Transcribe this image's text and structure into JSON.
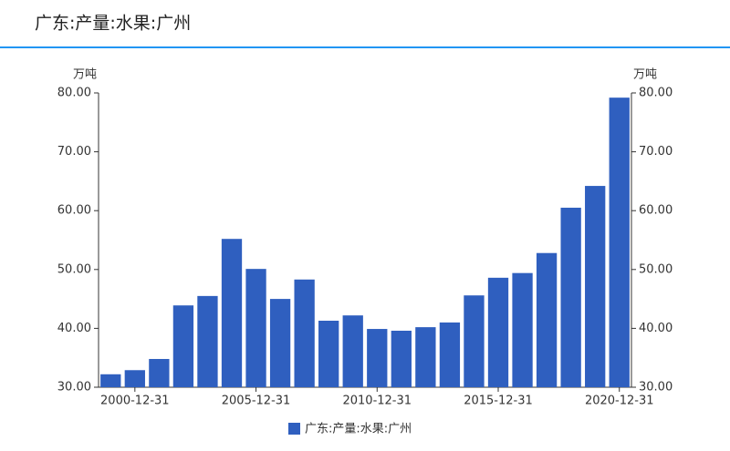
{
  "chart_data": {
    "type": "bar",
    "title": "广东:产量:水果:广州",
    "y_unit": "万吨",
    "y2_unit": "万吨",
    "categories": [
      null,
      "2000-12-31",
      null,
      null,
      null,
      null,
      "2005-12-31",
      null,
      null,
      null,
      null,
      "2010-12-31",
      null,
      null,
      null,
      null,
      "2015-12-31",
      null,
      null,
      null,
      null,
      "2020-12-31"
    ],
    "series": [
      {
        "name": "广东:产量:水果:广州",
        "color": "#2f5fbf",
        "values": [
          32.2,
          32.9,
          34.8,
          43.9,
          45.5,
          55.2,
          50.1,
          45.0,
          48.3,
          41.3,
          42.2,
          39.9,
          39.6,
          40.2,
          41.0,
          45.6,
          48.6,
          49.4,
          52.8,
          60.5,
          64.2,
          79.2
        ]
      }
    ],
    "ylim": [
      30,
      80
    ],
    "yticks": [
      {
        "value": 30,
        "label": "30.00"
      },
      {
        "value": 40,
        "label": "40.00"
      },
      {
        "value": 50,
        "label": "50.00"
      },
      {
        "value": 60,
        "label": "60.00"
      },
      {
        "value": 70,
        "label": "70.00"
      },
      {
        "value": 80,
        "label": "80.00"
      }
    ],
    "y2lim": [
      30,
      80
    ],
    "y2ticks": [
      {
        "value": 30,
        "label": "30.00"
      },
      {
        "value": 40,
        "label": "40.00"
      },
      {
        "value": 50,
        "label": "50.00"
      },
      {
        "value": 60,
        "label": "60.00"
      },
      {
        "value": 70,
        "label": "70.00"
      },
      {
        "value": 80,
        "label": "80.00"
      }
    ]
  }
}
